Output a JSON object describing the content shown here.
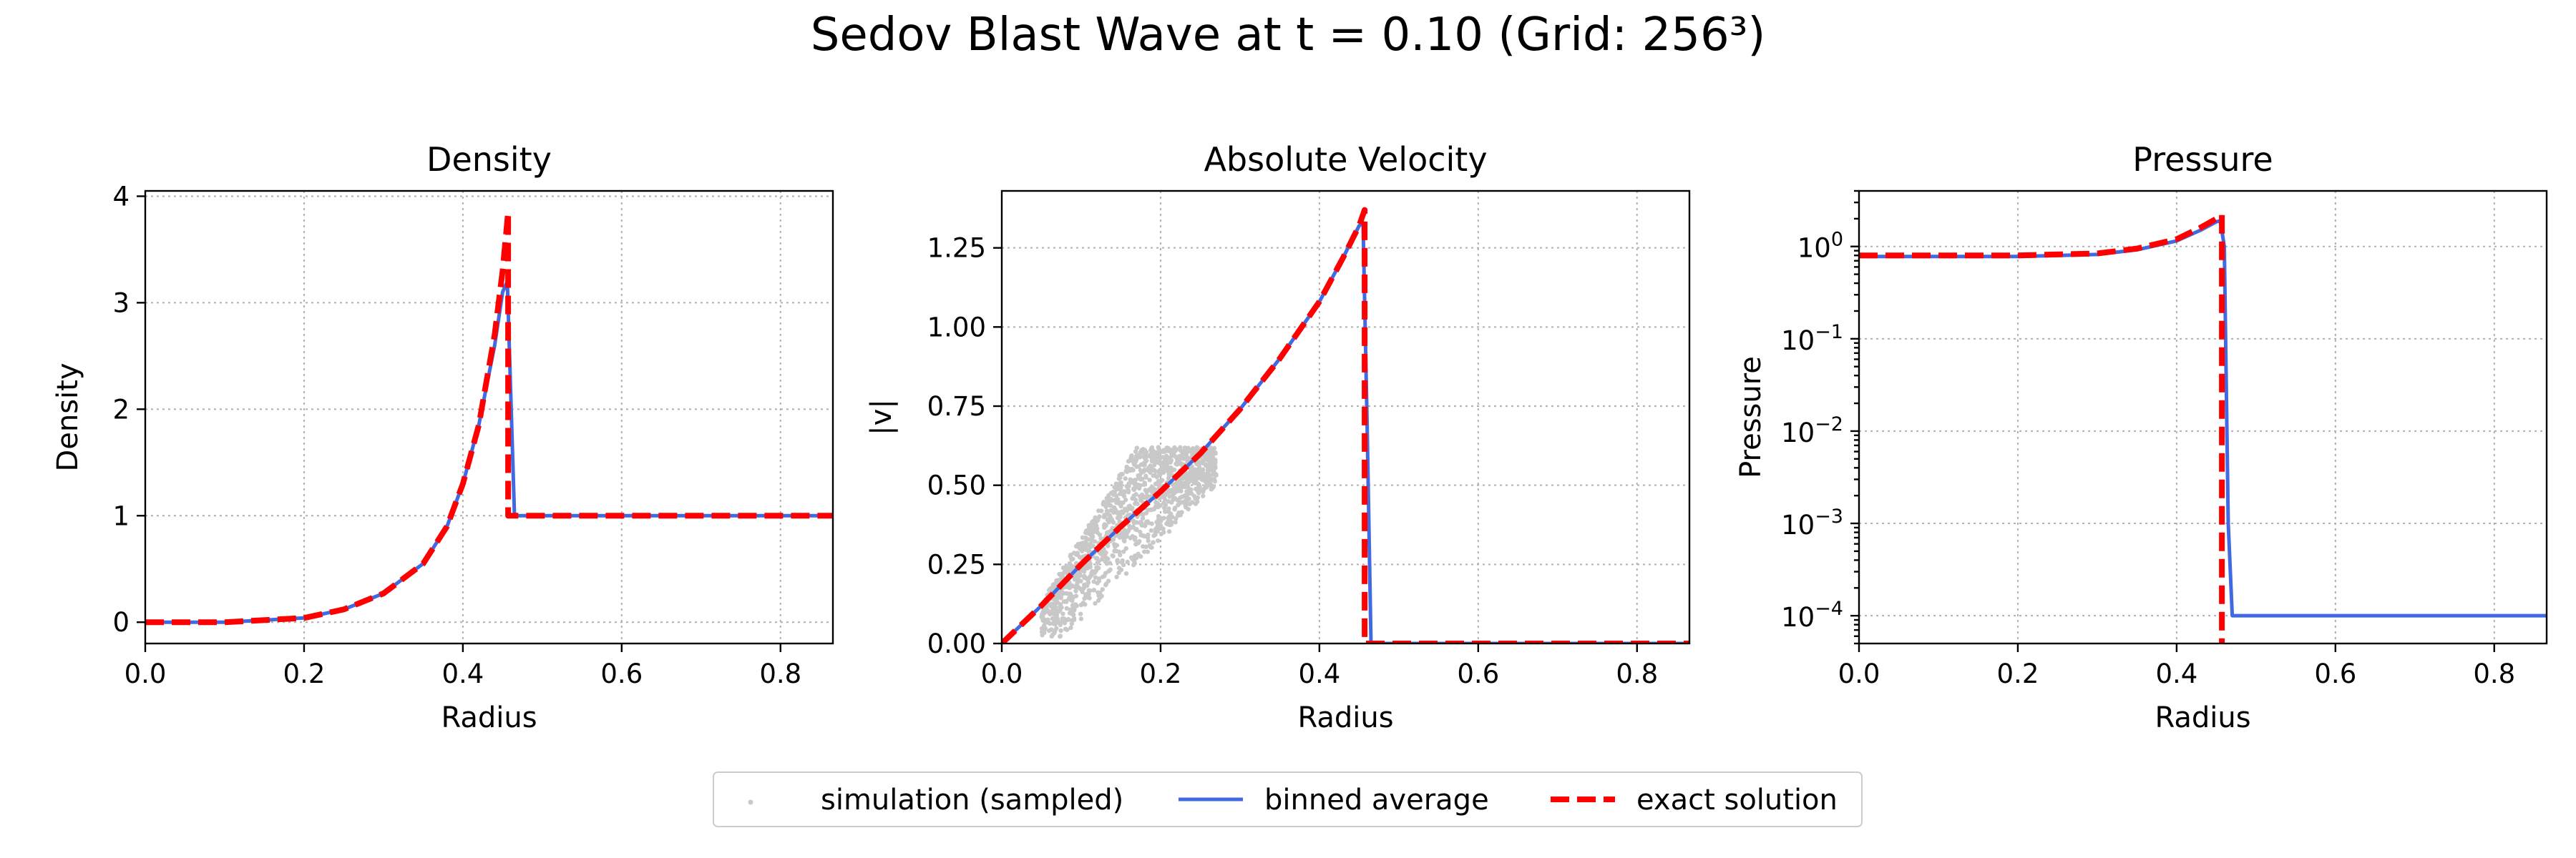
{
  "figure": {
    "title": "Sedov Blast Wave at t = 0.10 (Grid: 256³)"
  },
  "legend": {
    "placement": "bottom-center",
    "entries": [
      {
        "label": "simulation (sampled)",
        "style": "scatter",
        "color": "#c8c8c8"
      },
      {
        "label": "binned average",
        "style": "line",
        "color": "#4169e1"
      },
      {
        "label": "exact solution",
        "style": "dashed",
        "color": "#ff0000"
      }
    ]
  },
  "colors": {
    "binned": "#4169e1",
    "exact": "#ff0000",
    "sim": "#c8c8c8"
  },
  "chart_data": [
    {
      "id": "density",
      "type": "line",
      "title": "Density",
      "xlabel": "Radius",
      "ylabel": "Density",
      "xlim": [
        0.0,
        0.866
      ],
      "ylim": [
        -0.2,
        4.05
      ],
      "yscale": "linear",
      "grid": true,
      "xticks": [
        0.0,
        0.2,
        0.4,
        0.6,
        0.8
      ],
      "xtick_labels": [
        "0.0",
        "0.2",
        "0.4",
        "0.6",
        "0.8"
      ],
      "yticks": [
        0,
        1,
        2,
        3,
        4
      ],
      "ytick_labels": [
        "0",
        "1",
        "2",
        "3",
        "4"
      ],
      "series": [
        {
          "name": "binned average",
          "style": "line",
          "color": "#4169e1",
          "x": [
            0.0,
            0.1,
            0.2,
            0.25,
            0.3,
            0.35,
            0.38,
            0.4,
            0.42,
            0.44,
            0.45,
            0.456,
            0.46,
            0.465,
            0.47,
            0.866
          ],
          "y": [
            0.0,
            0.0,
            0.04,
            0.12,
            0.27,
            0.55,
            0.9,
            1.3,
            1.85,
            2.6,
            3.1,
            3.2,
            2.2,
            1.0,
            1.0,
            1.0
          ]
        },
        {
          "name": "exact solution",
          "style": "dashed",
          "color": "#ff0000",
          "x": [
            0.0,
            0.1,
            0.2,
            0.25,
            0.3,
            0.35,
            0.38,
            0.4,
            0.42,
            0.44,
            0.45,
            0.457,
            0.457,
            0.866
          ],
          "y": [
            0.0,
            0.0,
            0.04,
            0.12,
            0.27,
            0.55,
            0.9,
            1.3,
            1.85,
            2.7,
            3.3,
            3.85,
            1.0,
            1.0
          ]
        }
      ]
    },
    {
      "id": "velocity",
      "type": "line",
      "title": "Absolute Velocity",
      "xlabel": "Radius",
      "ylabel": "|v|",
      "xlim": [
        0.0,
        0.866
      ],
      "ylim": [
        0.0,
        1.43
      ],
      "yscale": "linear",
      "grid": true,
      "xticks": [
        0.0,
        0.2,
        0.4,
        0.6,
        0.8
      ],
      "xtick_labels": [
        "0.0",
        "0.2",
        "0.4",
        "0.6",
        "0.8"
      ],
      "yticks": [
        0.0,
        0.25,
        0.5,
        0.75,
        1.0,
        1.25
      ],
      "ytick_labels": [
        "0.00",
        "0.25",
        "0.50",
        "0.75",
        "1.00",
        "1.25"
      ],
      "scatter_region": {
        "x_min": 0.05,
        "x_max": 0.27,
        "y_top": 0.62,
        "y_bottom": 0.02
      },
      "series": [
        {
          "name": "binned average",
          "style": "line",
          "color": "#4169e1",
          "x": [
            0.0,
            0.05,
            0.1,
            0.15,
            0.2,
            0.25,
            0.3,
            0.35,
            0.4,
            0.43,
            0.45,
            0.455,
            0.46,
            0.465,
            0.866
          ],
          "y": [
            0.0,
            0.12,
            0.25,
            0.37,
            0.48,
            0.6,
            0.74,
            0.9,
            1.08,
            1.22,
            1.32,
            1.33,
            0.7,
            0.0,
            0.0
          ]
        },
        {
          "name": "exact solution",
          "style": "dashed",
          "color": "#ff0000",
          "x": [
            0.0,
            0.05,
            0.1,
            0.15,
            0.2,
            0.25,
            0.3,
            0.35,
            0.4,
            0.43,
            0.45,
            0.457,
            0.457,
            0.866
          ],
          "y": [
            0.0,
            0.12,
            0.25,
            0.37,
            0.48,
            0.6,
            0.74,
            0.9,
            1.08,
            1.22,
            1.32,
            1.37,
            0.0,
            0.0
          ]
        }
      ]
    },
    {
      "id": "pressure",
      "type": "line",
      "title": "Pressure",
      "xlabel": "Radius",
      "ylabel": "Pressure",
      "xlim": [
        0.0,
        0.866
      ],
      "ylim": [
        5e-05,
        4.0
      ],
      "yscale": "log",
      "grid": true,
      "xticks": [
        0.0,
        0.2,
        0.4,
        0.6,
        0.8
      ],
      "xtick_labels": [
        "0.0",
        "0.2",
        "0.4",
        "0.6",
        "0.8"
      ],
      "yticks": [
        0.0001,
        0.001,
        0.01,
        0.1,
        1
      ],
      "ytick_labels": [
        {
          "base": "10",
          "exp": "−4"
        },
        {
          "base": "10",
          "exp": "−3"
        },
        {
          "base": "10",
          "exp": "−2"
        },
        {
          "base": "10",
          "exp": "−1"
        },
        {
          "base": "10",
          "exp": "0"
        }
      ],
      "series": [
        {
          "name": "binned average",
          "style": "line",
          "color": "#4169e1",
          "x": [
            0.0,
            0.1,
            0.2,
            0.3,
            0.35,
            0.4,
            0.43,
            0.45,
            0.455,
            0.46,
            0.465,
            0.47,
            0.866
          ],
          "y": [
            0.78,
            0.78,
            0.78,
            0.82,
            0.92,
            1.15,
            1.5,
            1.85,
            1.9,
            1.0,
            0.001,
            0.0001,
            0.0001
          ]
        },
        {
          "name": "exact solution",
          "style": "dashed",
          "color": "#ff0000",
          "x": [
            0.0,
            0.1,
            0.2,
            0.3,
            0.35,
            0.4,
            0.43,
            0.45,
            0.457,
            0.457
          ],
          "y": [
            0.8,
            0.8,
            0.8,
            0.84,
            0.95,
            1.2,
            1.6,
            2.0,
            2.2,
            5e-05
          ]
        }
      ]
    }
  ]
}
